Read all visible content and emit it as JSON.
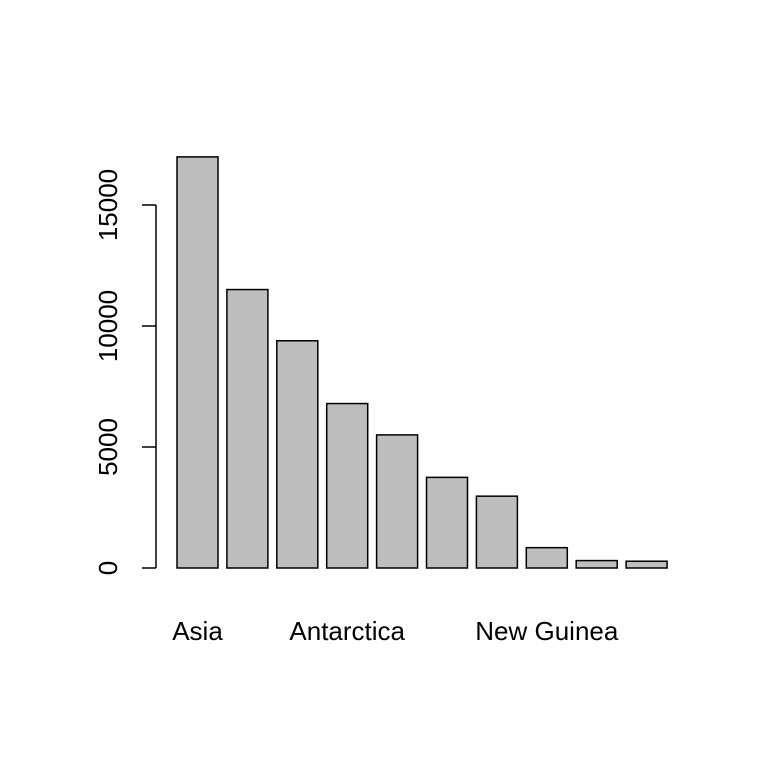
{
  "chart_data": {
    "type": "bar",
    "title": "",
    "xlabel": "",
    "ylabel": "",
    "categories": [
      "Asia",
      "",
      "",
      "Antarctica",
      "",
      "",
      "",
      "New Guinea",
      "",
      ""
    ],
    "values": [
      16988,
      11506,
      9390,
      6795,
      5500,
      3745,
      2968,
      840,
      306,
      280
    ],
    "ylim": [
      0,
      17000
    ],
    "yticks": [
      0,
      5000,
      10000,
      15000
    ],
    "ytick_labels": [
      "0",
      "5000",
      "10000",
      "15000"
    ],
    "bar_fill": "#bebebe",
    "bar_stroke": "#000000",
    "grid": false,
    "legend": "none"
  }
}
